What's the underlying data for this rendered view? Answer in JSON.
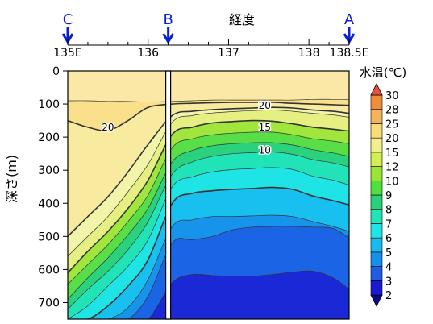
{
  "chart_data": {
    "type": "heatmap",
    "title": "",
    "xlabel": "経度",
    "ylabel": "深さ(m)",
    "colorbar_label": "水温(℃)",
    "x_ticks": [
      {
        "value": 135,
        "label": "135E"
      },
      {
        "value": 136,
        "label": "136"
      },
      {
        "value": 137,
        "label": "137"
      },
      {
        "value": 138,
        "label": "138"
      },
      {
        "value": 138.5,
        "label": "138.5E"
      }
    ],
    "y_ticks": [
      0,
      100,
      200,
      300,
      400,
      500,
      600,
      700
    ],
    "xlim": [
      135,
      138.5
    ],
    "ylim": [
      0,
      750
    ],
    "y_inverted": true,
    "station_markers": [
      {
        "name": "C",
        "x": 135,
        "color": "#0a1ed2"
      },
      {
        "name": "B",
        "x": 136.25,
        "color": "#0a1ed2"
      },
      {
        "name": "A",
        "x": 138.5,
        "color": "#0a1ed2"
      }
    ],
    "section_gap_x": 136.25,
    "colorbar": {
      "levels": [
        2,
        3,
        4,
        5,
        6,
        7,
        8,
        9,
        10,
        12,
        15,
        20,
        25,
        28,
        30
      ],
      "colors": [
        "#0a0a8c",
        "#1a1ad2",
        "#1e5ee6",
        "#1490ec",
        "#14bcf0",
        "#1ee6e6",
        "#1ee6b4",
        "#28d27a",
        "#50e03c",
        "#9ae632",
        "#d2ee50",
        "#f2f08c",
        "#f8dc78",
        "#f5b45a",
        "#f08c3c",
        "#e6503c"
      ]
    },
    "bands": [
      {
        "low": 25,
        "high": 30,
        "color": "#fae08a",
        "depths": [
          90,
          90,
          92,
          92,
          94,
          92,
          90,
          88,
          88,
          88,
          88,
          88,
          86,
          86,
          86
        ]
      },
      {
        "low": 20,
        "high": 25,
        "color": "#f8eba0",
        "depths": [
          150,
          170,
          180,
          150,
          110,
          100,
          98,
          96,
          95,
          95,
          95,
          98,
          100,
          102,
          104
        ]
      },
      {
        "low": 15,
        "high": 20,
        "color": "#f2f4aa",
        "depths": [
          500,
          440,
          380,
          305,
          222,
          135,
          122,
          117,
          114,
          112,
          110,
          112,
          118,
          122,
          128
        ]
      },
      {
        "low": 12,
        "high": 15,
        "color": "#e6f082",
        "depths": [
          560,
          500,
          440,
          365,
          282,
          155,
          135,
          127,
          123,
          120,
          118,
          122,
          128,
          133,
          140
        ]
      },
      {
        "low": 10,
        "high": 12,
        "color": "#a0e63c",
        "depths": [
          610,
          545,
          485,
          415,
          330,
          192,
          170,
          157,
          153,
          150,
          152,
          160,
          170,
          176,
          182
        ]
      },
      {
        "low": 9,
        "high": 10,
        "color": "#58de46",
        "depths": [
          645,
          585,
          525,
          455,
          375,
          232,
          205,
          193,
          188,
          185,
          185,
          193,
          205,
          212,
          220
        ]
      },
      {
        "low": 8,
        "high": 9,
        "color": "#2ad27e",
        "depths": [
          690,
          625,
          565,
          495,
          415,
          275,
          240,
          226,
          220,
          217,
          217,
          224,
          238,
          248,
          258
        ]
      },
      {
        "low": 7,
        "high": 8,
        "color": "#20e4b8",
        "depths": [
          720,
          660,
          605,
          540,
          455,
          312,
          275,
          258,
          250,
          247,
          245,
          252,
          268,
          278,
          290
        ]
      },
      {
        "low": 6,
        "high": 7,
        "color": "#1ee4e6",
        "depths": [
          750,
          710,
          650,
          590,
          510,
          350,
          320,
          305,
          298,
          295,
          292,
          298,
          318,
          330,
          345
        ]
      },
      {
        "low": 5,
        "high": 6,
        "color": "#18c0f0",
        "depths": [
          750,
          750,
          710,
          650,
          570,
          400,
          370,
          362,
          358,
          355,
          352,
          358,
          378,
          392,
          405
        ]
      },
      {
        "low": 4,
        "high": 5,
        "color": "#1694ec",
        "depths": [
          750,
          750,
          750,
          715,
          630,
          470,
          450,
          440,
          440,
          438,
          436,
          440,
          455,
          470,
          485
        ]
      },
      {
        "low": 3,
        "high": 4,
        "color": "#1c64e6",
        "depths": [
          750,
          750,
          750,
          750,
          680,
          520,
          510,
          500,
          480,
          472,
          470,
          470,
          472,
          476,
          505
        ]
      },
      {
        "low": 2,
        "high": 3,
        "color": "#1a28d6",
        "depths": [
          750,
          750,
          750,
          750,
          750,
          640,
          615,
          618,
          620,
          620,
          615,
          608,
          605,
          625,
          660
        ]
      }
    ],
    "band_x": [
      135,
      135.25,
      135.5,
      135.75,
      136,
      136.3,
      136.55,
      136.8,
      137.05,
      137.3,
      137.55,
      137.8,
      138.05,
      138.3,
      138.5
    ],
    "contour_labels": [
      {
        "text": "20",
        "x": 137.45,
        "y": 105
      },
      {
        "text": "15",
        "x": 137.45,
        "y": 170
      },
      {
        "text": "10",
        "x": 137.45,
        "y": 240
      },
      {
        "text": "20",
        "x": 135.5,
        "y": 170
      }
    ]
  }
}
